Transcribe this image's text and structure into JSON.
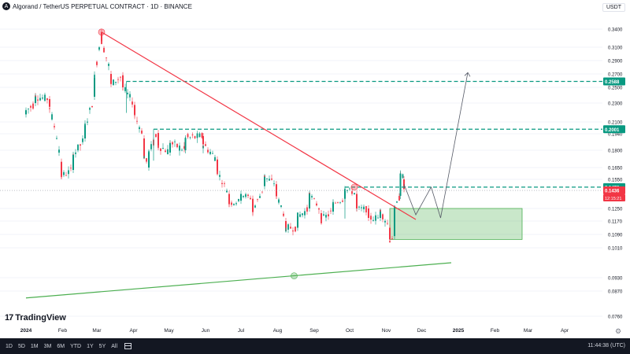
{
  "header": {
    "title": "Algorand / TetherUS PERPETUAL CONTRACT · 1D · BINANCE",
    "currency": "USDT",
    "symbol_glyph": "A"
  },
  "logo": {
    "mark": "17",
    "text": "TradingView"
  },
  "toolbar": {
    "timeframes": [
      "1D",
      "5D",
      "1M",
      "3M",
      "6M",
      "YTD",
      "1Y",
      "5Y",
      "All"
    ],
    "clock": "11:44:38 (UTC)"
  },
  "chart_data": {
    "type": "candlestick",
    "x_axis_labels": [
      {
        "label": "2024",
        "x": 0,
        "bold": true
      },
      {
        "label": "Feb",
        "x": 31
      },
      {
        "label": "Mar",
        "x": 60
      },
      {
        "label": "Apr",
        "x": 91
      },
      {
        "label": "May",
        "x": 121
      },
      {
        "label": "Jun",
        "x": 152
      },
      {
        "label": "Jul",
        "x": 182
      },
      {
        "label": "Aug",
        "x": 213
      },
      {
        "label": "Sep",
        "x": 244
      },
      {
        "label": "Oct",
        "x": 274
      },
      {
        "label": "Nov",
        "x": 305
      },
      {
        "label": "Dec",
        "x": 335
      },
      {
        "label": "2025",
        "x": 366,
        "bold": true
      },
      {
        "label": "Feb",
        "x": 397
      },
      {
        "label": "Mar",
        "x": 425
      },
      {
        "label": "Apr",
        "x": 456
      }
    ],
    "y_axis_labels": [
      "0.3400",
      "0.3100",
      "0.2900",
      "0.2700",
      "0.2500",
      "0.2300",
      "0.2100",
      "0.1940",
      "0.1800",
      "0.1650",
      "0.1550",
      "0.1250",
      "0.1170",
      "0.1090",
      "0.1010",
      "0.0930",
      "0.0870",
      "0.0760"
    ],
    "y_ticks": [
      0.34,
      0.31,
      0.29,
      0.27,
      0.25,
      0.23,
      0.21,
      0.194,
      0.18,
      0.165,
      0.155,
      0.125,
      0.117,
      0.109,
      0.101,
      0.093,
      0.087,
      0.076
    ],
    "price_badges": [
      {
        "label": "0.2588",
        "value": 0.2588,
        "color": "#089981"
      },
      {
        "label": "0.2001",
        "value": 0.2001,
        "color": "#089981"
      },
      {
        "label": "0.1470",
        "value": 0.147,
        "color": "#089981"
      },
      {
        "label": "0.1436",
        "value": 0.1436,
        "color": "#f23645"
      }
    ],
    "countdown": "12:15:21",
    "candle_colors": {
      "up": "#089981",
      "down": "#f23645"
    },
    "candles_approx": [
      {
        "x": 0,
        "open": 0.218,
        "close": 0.222
      },
      {
        "x": 8,
        "open": 0.23,
        "close": 0.238
      },
      {
        "x": 20,
        "open": 0.235,
        "close": 0.226
      },
      {
        "x": 30,
        "open": 0.17,
        "close": 0.158
      },
      {
        "x": 40,
        "open": 0.163,
        "close": 0.176
      },
      {
        "x": 50,
        "open": 0.19,
        "close": 0.205
      },
      {
        "x": 58,
        "open": 0.238,
        "close": 0.265
      },
      {
        "x": 64,
        "open": 0.335,
        "close": 0.32
      },
      {
        "x": 72,
        "open": 0.27,
        "close": 0.255
      },
      {
        "x": 82,
        "open": 0.268,
        "close": 0.25
      },
      {
        "x": 92,
        "open": 0.228,
        "close": 0.218
      },
      {
        "x": 100,
        "open": 0.19,
        "close": 0.175
      },
      {
        "x": 104,
        "open": 0.165,
        "close": 0.178
      },
      {
        "x": 112,
        "open": 0.195,
        "close": 0.184
      },
      {
        "x": 122,
        "open": 0.178,
        "close": 0.186
      },
      {
        "x": 135,
        "open": 0.18,
        "close": 0.19
      },
      {
        "x": 150,
        "open": 0.192,
        "close": 0.185
      },
      {
        "x": 162,
        "open": 0.172,
        "close": 0.162
      },
      {
        "x": 172,
        "open": 0.14,
        "close": 0.13
      },
      {
        "x": 182,
        "open": 0.133,
        "close": 0.14
      },
      {
        "x": 192,
        "open": 0.135,
        "close": 0.123
      },
      {
        "x": 202,
        "open": 0.148,
        "close": 0.157
      },
      {
        "x": 212,
        "open": 0.15,
        "close": 0.138
      },
      {
        "x": 220,
        "open": 0.117,
        "close": 0.113
      },
      {
        "x": 230,
        "open": 0.113,
        "close": 0.12
      },
      {
        "x": 240,
        "open": 0.125,
        "close": 0.14
      },
      {
        "x": 250,
        "open": 0.122,
        "close": 0.118
      },
      {
        "x": 260,
        "open": 0.123,
        "close": 0.13
      },
      {
        "x": 270,
        "open": 0.135,
        "close": 0.145
      },
      {
        "x": 280,
        "open": 0.14,
        "close": 0.125
      },
      {
        "x": 290,
        "open": 0.125,
        "close": 0.119
      },
      {
        "x": 300,
        "open": 0.119,
        "close": 0.123
      },
      {
        "x": 308,
        "open": 0.113,
        "close": 0.106
      },
      {
        "x": 312,
        "open": 0.108,
        "close": 0.125
      },
      {
        "x": 317,
        "open": 0.138,
        "close": 0.16
      },
      {
        "x": 320,
        "open": 0.155,
        "close": 0.145
      }
    ],
    "annotations": {
      "downtrend_line": {
        "color": "#f23645",
        "from": {
          "x": 64,
          "value": 0.335
        },
        "to": {
          "x": 330,
          "value": 0.118
        }
      },
      "support_line": {
        "color": "#4caf50",
        "from": {
          "x": 0,
          "value": 0.084
        },
        "to": {
          "x": 360,
          "value": 0.097
        }
      },
      "levels": [
        {
          "value": 0.2588,
          "from_x": 85,
          "color": "#089981",
          "style": "dashed"
        },
        {
          "value": 0.2001,
          "from_x": 108,
          "color": "#089981",
          "style": "dashed"
        },
        {
          "value": 0.147,
          "from_x": 270,
          "color": "#089981",
          "style": "dashed"
        }
      ],
      "demand_zone": {
        "x_from": 308,
        "x_to": 420,
        "value_top": 0.125,
        "value_bottom": 0.106,
        "color": "#4caf50"
      },
      "projected_path": [
        {
          "x": 320,
          "value": 0.15
        },
        {
          "x": 330,
          "value": 0.121
        },
        {
          "x": 343,
          "value": 0.147
        },
        {
          "x": 351,
          "value": 0.119
        },
        {
          "x": 374,
          "value": 0.272
        }
      ],
      "pivot_markers": [
        {
          "x": 64,
          "value": 0.335,
          "color": "#f23645"
        },
        {
          "x": 278,
          "value": 0.147,
          "color": "#f23645"
        },
        {
          "x": 227,
          "value": 0.0935,
          "color": "#4caf50"
        }
      ]
    }
  }
}
